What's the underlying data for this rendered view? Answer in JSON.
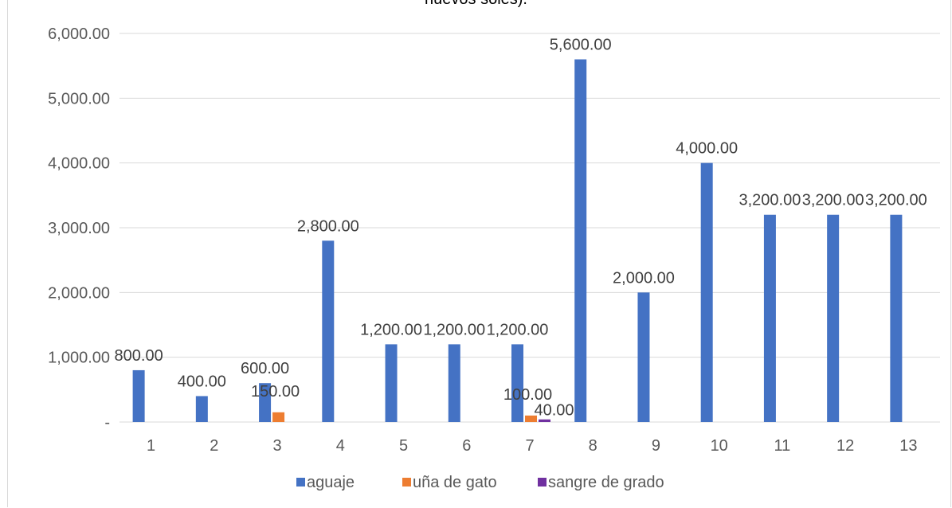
{
  "chart_data": {
    "type": "bar",
    "title": "nuevos soles).",
    "categories": [
      "1",
      "2",
      "3",
      "4",
      "5",
      "6",
      "7",
      "8",
      "9",
      "10",
      "11",
      "12",
      "13"
    ],
    "series": [
      {
        "name": "aguaje",
        "color": "#4472C4",
        "values": [
          800,
          400,
          600,
          2800,
          1200,
          1200,
          1200,
          5600,
          2000,
          4000,
          3200,
          3200,
          3200
        ],
        "labels": [
          "800.00",
          "400.00",
          "600.00",
          "2,800.00",
          "1,200.00",
          "1,200.00",
          "1,200.00",
          "5,600.00",
          "2,000.00",
          "4,000.00",
          "3,200.00",
          "3,200.00",
          "3,200.00"
        ]
      },
      {
        "name": "uña de gato",
        "color": "#ED7D31",
        "values": [
          null,
          null,
          150,
          null,
          null,
          null,
          100,
          null,
          null,
          null,
          null,
          null,
          null
        ],
        "labels": [
          null,
          null,
          "150.00",
          null,
          null,
          null,
          "100.00",
          null,
          null,
          null,
          null,
          null,
          null
        ]
      },
      {
        "name": "sangre de grado",
        "color": "#7030A0",
        "values": [
          null,
          null,
          null,
          null,
          null,
          null,
          40,
          null,
          null,
          null,
          null,
          null,
          null
        ],
        "labels": [
          null,
          null,
          null,
          null,
          null,
          null,
          "40.00",
          null,
          null,
          null,
          null,
          null,
          null
        ]
      }
    ],
    "ylim": [
      0,
      6000
    ],
    "yticks": [
      0,
      1000,
      2000,
      3000,
      4000,
      5000,
      6000
    ],
    "ytick_labels": [
      "-",
      "1,000.00",
      "2,000.00",
      "3,000.00",
      "4,000.00",
      "5,000.00",
      "6,000.00"
    ],
    "grid": true,
    "legend": "bottom"
  }
}
